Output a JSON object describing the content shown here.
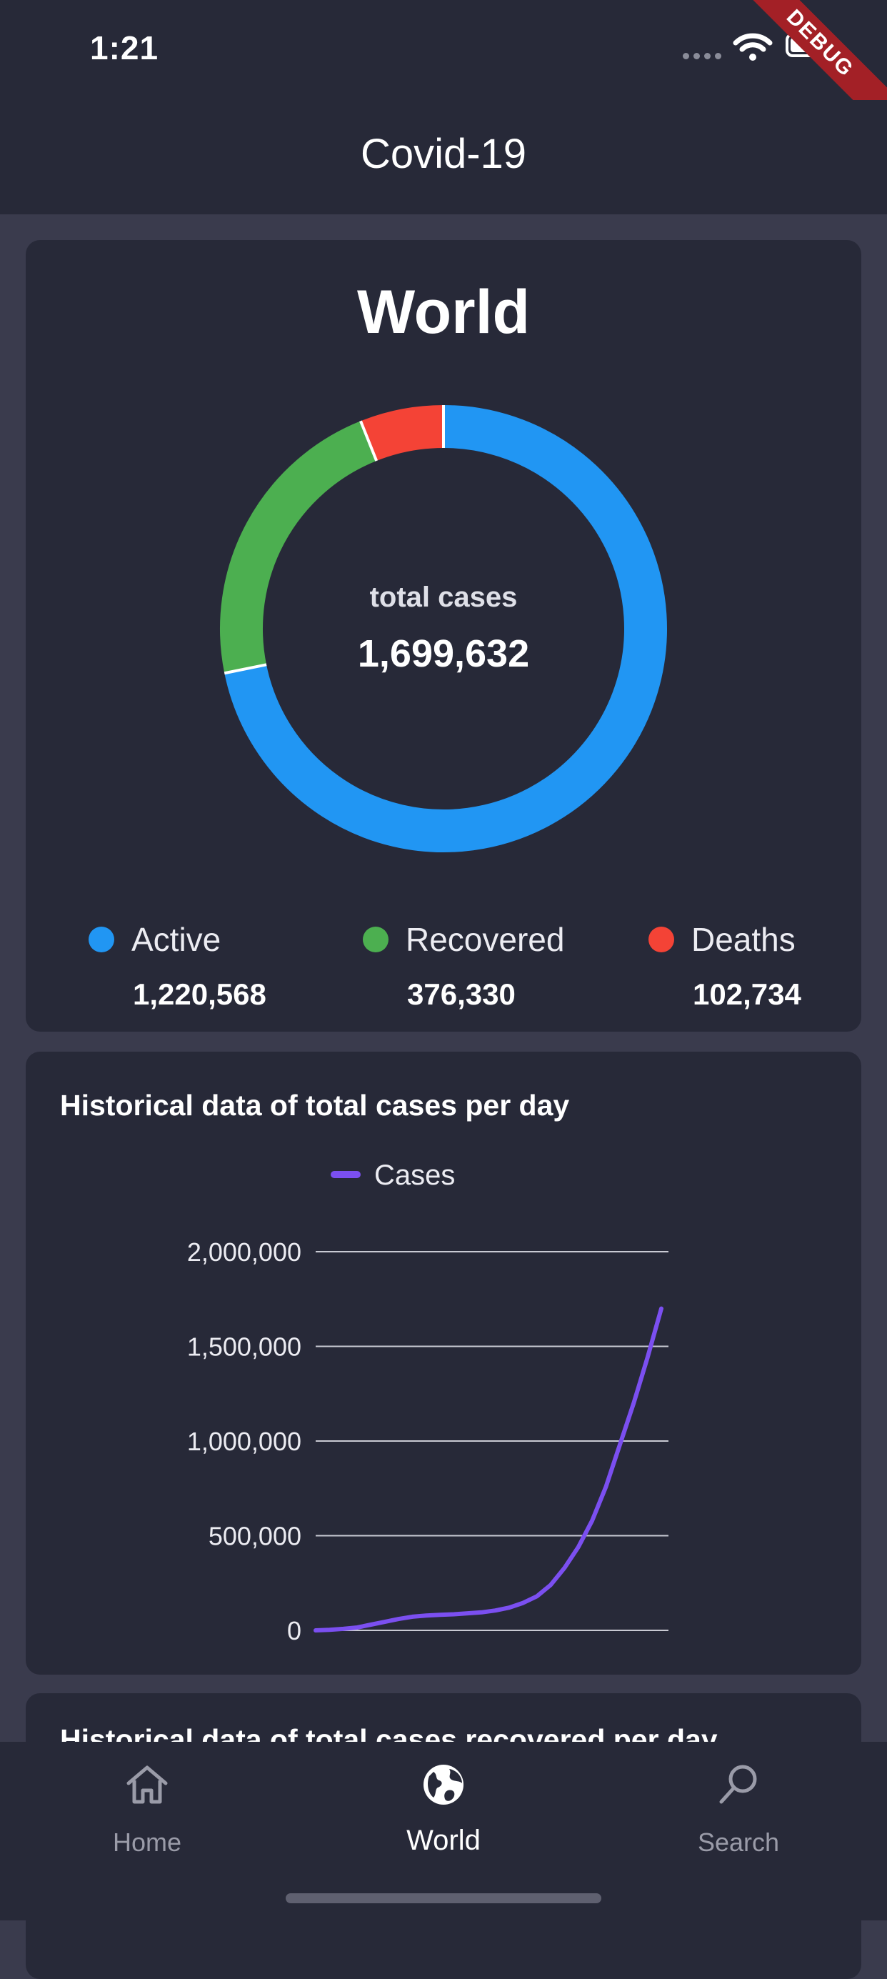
{
  "status_bar": {
    "time": "1:21",
    "debug_banner": "DEBUG"
  },
  "app_bar": {
    "title": "Covid-19"
  },
  "world_card": {
    "title": "World",
    "center_label": "total cases",
    "total_cases": "1,699,632",
    "legend": [
      {
        "label": "Active",
        "value": "1,220,568",
        "color": "#2196f3"
      },
      {
        "label": "Recovered",
        "value": "376,330",
        "color": "#4caf50"
      },
      {
        "label": "Deaths",
        "value": "102,734",
        "color": "#f44336"
      }
    ]
  },
  "cases_chart": {
    "title": "Historical data of total cases per day",
    "legend_label": "Cases",
    "tick_labels": [
      "0",
      "500,000",
      "1,000,000",
      "1,500,000",
      "2,000,000"
    ]
  },
  "recovered_chart": {
    "title": "Historical data of total cases recovered per day"
  },
  "bottom_nav": {
    "items": [
      {
        "label": "Home",
        "icon": "home-icon",
        "active": false
      },
      {
        "label": "World",
        "icon": "globe-icon",
        "active": true
      },
      {
        "label": "Search",
        "icon": "search-icon",
        "active": false
      }
    ]
  },
  "chart_data": [
    {
      "type": "pie",
      "categories": [
        "Active",
        "Recovered",
        "Deaths"
      ],
      "values": [
        1220568,
        376330,
        102734
      ],
      "colors": [
        "#2196f3",
        "#4caf50",
        "#f44336"
      ],
      "center_label": "total cases",
      "center_value": "1,699,632"
    },
    {
      "type": "line",
      "title": "Historical data of total cases per day",
      "series": [
        {
          "name": "Cases",
          "color": "#7b4ff0",
          "values": [
            0,
            3000,
            8000,
            15000,
            30000,
            45000,
            60000,
            72000,
            78000,
            82000,
            85000,
            90000,
            95000,
            105000,
            120000,
            145000,
            180000,
            240000,
            330000,
            440000,
            580000,
            760000,
            980000,
            1200000,
            1440000,
            1699632
          ]
        }
      ],
      "ylim": [
        0,
        2000000
      ],
      "yticks": [
        0,
        500000,
        1000000,
        1500000,
        2000000
      ],
      "grid": true,
      "legend_position": "top"
    }
  ]
}
